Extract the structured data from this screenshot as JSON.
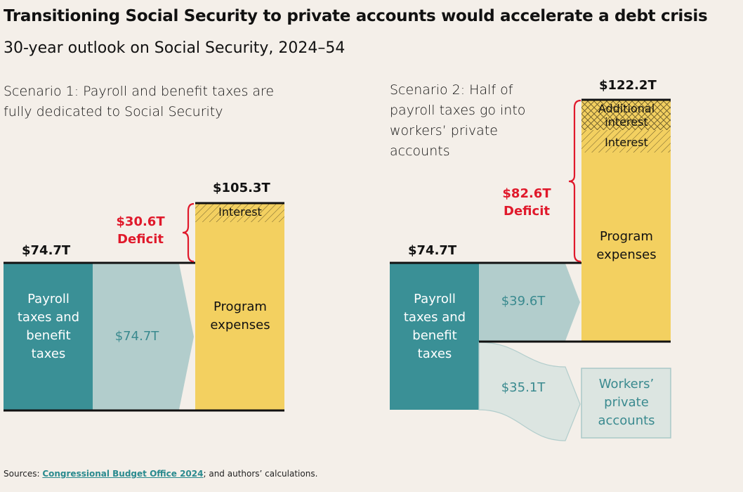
{
  "title": "Transitioning Social Security to private accounts would accelerate a debt crisis",
  "subtitle": "30-year outlook on Social Security, 2024–54",
  "colors": {
    "background": "#f4efe9",
    "teal": "#3a9096",
    "light_teal": "#b2cdcc",
    "pale_teal": "#dce5e1",
    "yellow": "#f3d060",
    "deficit_red": "#e0192b"
  },
  "scenario1": {
    "heading": "Scenario 1: Payroll and benefit taxes are fully dedicated to Social Security",
    "revenue_total": "$74.7T",
    "revenue_label": "Payroll taxes and benefit taxes",
    "flow_value": "$74.7T",
    "spending_total": "$105.3T",
    "spending_label": "Program expenses",
    "interest_label": "Interest",
    "deficit_value": "$30.6T",
    "deficit_label": "Deficit"
  },
  "scenario2": {
    "heading": "Scenario 2: Half of payroll taxes go into workers’ private accounts",
    "revenue_total": "$74.7T",
    "revenue_label": "Payroll taxes and benefit taxes",
    "flow_value": "$39.6T",
    "private_flow_value": "$35.1T",
    "private_label": "Workers’ private accounts",
    "spending_total": "$122.2T",
    "spending_label": "Program expenses",
    "additional_interest_label": "Additional interest",
    "interest_label": "Interest",
    "deficit_value": "$82.6T",
    "deficit_label": "Deficit"
  },
  "sources": {
    "prefix": "Sources: ",
    "link": "Congressional Budget Office 2024",
    "suffix": "; and authors’ calculations."
  }
}
